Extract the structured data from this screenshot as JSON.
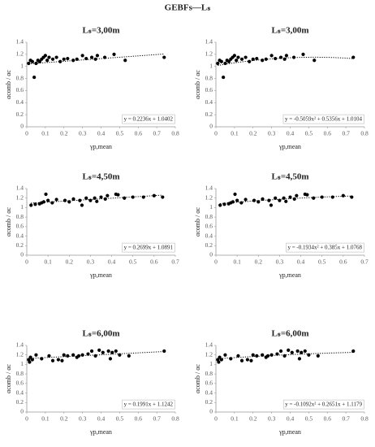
{
  "title": "GEBFs—Lₛ",
  "chart_data": [
    {
      "type": "scatter",
      "title": "Lₛ=3,00m",
      "x_label": "γp,mean",
      "y_label": "αcomb / αc",
      "color": "#000000",
      "x": [
        0.01,
        0.02,
        0.03,
        0.04,
        0.05,
        0.06,
        0.07,
        0.08,
        0.09,
        0.1,
        0.11,
        0.12,
        0.14,
        0.16,
        0.18,
        0.2,
        0.22,
        0.25,
        0.27,
        0.3,
        0.32,
        0.35,
        0.37,
        0.38,
        0.42,
        0.47,
        0.53,
        0.74
      ],
      "y": [
        1.05,
        1.1,
        1.08,
        0.82,
        1.05,
        1.1,
        1.08,
        1.12,
        1.15,
        1.18,
        1.1,
        1.15,
        1.12,
        1.15,
        1.08,
        1.12,
        1.13,
        1.1,
        1.12,
        1.18,
        1.13,
        1.15,
        1.12,
        1.18,
        1.15,
        1.2,
        1.1,
        1.15
      ],
      "xlim": [
        0,
        0.8
      ],
      "ylim": [
        0,
        1.4
      ],
      "xticks": [
        0,
        0.1,
        0.2,
        0.3,
        0.4,
        0.5,
        0.6,
        0.7,
        0.8
      ],
      "yticks": [
        0,
        0.2,
        0.4,
        0.6,
        0.8,
        1,
        1.2,
        1.4
      ],
      "trendline": {
        "coefficients": [
          0.2236,
          1.0402
        ],
        "label": "y = 0.2236x + 1.0402"
      }
    },
    {
      "type": "scatter",
      "title": "Lₛ=3,00m",
      "x_label": "γp,mean",
      "y_label": "αcomb / αc",
      "color": "#000000",
      "x": [
        0.01,
        0.02,
        0.03,
        0.04,
        0.05,
        0.06,
        0.07,
        0.08,
        0.09,
        0.1,
        0.11,
        0.12,
        0.14,
        0.16,
        0.18,
        0.2,
        0.22,
        0.25,
        0.27,
        0.3,
        0.32,
        0.35,
        0.37,
        0.38,
        0.42,
        0.47,
        0.53,
        0.74
      ],
      "y": [
        1.05,
        1.1,
        1.08,
        0.82,
        1.05,
        1.1,
        1.08,
        1.12,
        1.15,
        1.18,
        1.1,
        1.15,
        1.12,
        1.15,
        1.08,
        1.12,
        1.13,
        1.1,
        1.12,
        1.18,
        1.13,
        1.15,
        1.12,
        1.18,
        1.15,
        1.2,
        1.1,
        1.15
      ],
      "xlim": [
        0,
        0.8
      ],
      "ylim": [
        0,
        1.4
      ],
      "xticks": [
        0,
        0.1,
        0.2,
        0.3,
        0.4,
        0.5,
        0.6,
        0.7,
        0.8
      ],
      "yticks": [
        0,
        0.2,
        0.4,
        0.6,
        0.8,
        1,
        1.2,
        1.4
      ],
      "trendline": {
        "coefficients": [
          -0.5059,
          0.5356,
          1.0104
        ],
        "label": "y = -0.5059x² + 0.5356x + 1.0104"
      }
    },
    {
      "type": "scatter",
      "title": "Lₛ=4,50m",
      "x_label": "γp,mean",
      "y_label": "αcomb / αc",
      "color": "#000000",
      "x": [
        0.02,
        0.04,
        0.06,
        0.07,
        0.08,
        0.09,
        0.1,
        0.12,
        0.14,
        0.18,
        0.2,
        0.22,
        0.25,
        0.26,
        0.28,
        0.3,
        0.32,
        0.33,
        0.35,
        0.37,
        0.38,
        0.42,
        0.43,
        0.46,
        0.5,
        0.55,
        0.6,
        0.64
      ],
      "y": [
        1.05,
        1.07,
        1.08,
        1.1,
        1.12,
        1.28,
        1.15,
        1.1,
        1.17,
        1.15,
        1.12,
        1.18,
        1.15,
        1.05,
        1.2,
        1.15,
        1.2,
        1.13,
        1.22,
        1.18,
        1.25,
        1.28,
        1.27,
        1.2,
        1.22,
        1.22,
        1.25,
        1.22
      ],
      "xlim": [
        0,
        0.7
      ],
      "ylim": [
        0,
        1.4
      ],
      "xticks": [
        0,
        0.1,
        0.2,
        0.3,
        0.4,
        0.5,
        0.6,
        0.7
      ],
      "yticks": [
        0,
        0.2,
        0.4,
        0.6,
        0.8,
        1,
        1.2,
        1.4
      ],
      "trendline": {
        "coefficients": [
          0.2699,
          1.0891
        ],
        "label": "y = 0.2699x + 1.0891"
      }
    },
    {
      "type": "scatter",
      "title": "Lₛ=4,50m",
      "x_label": "γp,mean",
      "y_label": "αcomb / αc",
      "color": "#000000",
      "x": [
        0.02,
        0.04,
        0.06,
        0.07,
        0.08,
        0.09,
        0.1,
        0.12,
        0.14,
        0.18,
        0.2,
        0.22,
        0.25,
        0.26,
        0.28,
        0.3,
        0.32,
        0.33,
        0.35,
        0.37,
        0.38,
        0.42,
        0.43,
        0.46,
        0.5,
        0.55,
        0.6,
        0.64
      ],
      "y": [
        1.05,
        1.07,
        1.08,
        1.1,
        1.12,
        1.28,
        1.15,
        1.1,
        1.17,
        1.15,
        1.12,
        1.18,
        1.15,
        1.05,
        1.2,
        1.15,
        1.2,
        1.13,
        1.22,
        1.18,
        1.25,
        1.28,
        1.27,
        1.2,
        1.22,
        1.22,
        1.25,
        1.22
      ],
      "xlim": [
        0,
        0.7
      ],
      "ylim": [
        0,
        1.4
      ],
      "xticks": [
        0,
        0.1,
        0.2,
        0.3,
        0.4,
        0.5,
        0.6,
        0.7
      ],
      "yticks": [
        0,
        0.2,
        0.4,
        0.6,
        0.8,
        1,
        1.2,
        1.4
      ],
      "trendline": {
        "coefficients": [
          -0.1934,
          0.385,
          1.0768
        ],
        "label": "y = -0.1934x² + 0.385x + 1.0768"
      }
    },
    {
      "type": "scatter",
      "title": "Lₛ=6,00m",
      "x_label": "γp,mean",
      "y_label": "αcomb / αc",
      "color": "#000000",
      "x": [
        0.01,
        0.015,
        0.02,
        0.03,
        0.05,
        0.08,
        0.12,
        0.14,
        0.17,
        0.19,
        0.2,
        0.22,
        0.25,
        0.27,
        0.28,
        0.3,
        0.33,
        0.35,
        0.37,
        0.39,
        0.41,
        0.44,
        0.45,
        0.46,
        0.48,
        0.5,
        0.55,
        0.74
      ],
      "y": [
        1.1,
        1.05,
        1.15,
        1.1,
        1.2,
        1.12,
        1.18,
        1.08,
        1.1,
        1.08,
        1.2,
        1.18,
        1.2,
        1.15,
        1.18,
        1.2,
        1.22,
        1.28,
        1.18,
        1.3,
        1.25,
        1.28,
        1.12,
        1.25,
        1.28,
        1.2,
        1.18,
        1.28
      ],
      "xlim": [
        0,
        0.8
      ],
      "ylim": [
        0,
        1.4
      ],
      "xticks": [
        0,
        0.1,
        0.2,
        0.3,
        0.4,
        0.5,
        0.6,
        0.7,
        0.8
      ],
      "yticks": [
        0,
        0.2,
        0.4,
        0.6,
        0.8,
        1,
        1.2,
        1.4
      ],
      "trendline": {
        "coefficients": [
          0.1991,
          1.1242
        ],
        "label": "y = 0.1991x + 1.1242"
      }
    },
    {
      "type": "scatter",
      "title": "Lₛ=6,00m",
      "x_label": "γp,mean",
      "y_label": "αcomb / αc",
      "color": "#000000",
      "x": [
        0.01,
        0.015,
        0.02,
        0.03,
        0.05,
        0.08,
        0.12,
        0.14,
        0.17,
        0.19,
        0.2,
        0.22,
        0.25,
        0.27,
        0.28,
        0.3,
        0.33,
        0.35,
        0.37,
        0.39,
        0.41,
        0.44,
        0.45,
        0.46,
        0.48,
        0.5,
        0.55,
        0.74
      ],
      "y": [
        1.1,
        1.05,
        1.15,
        1.1,
        1.2,
        1.12,
        1.18,
        1.08,
        1.1,
        1.08,
        1.2,
        1.18,
        1.2,
        1.15,
        1.18,
        1.2,
        1.22,
        1.28,
        1.18,
        1.3,
        1.25,
        1.28,
        1.12,
        1.25,
        1.28,
        1.2,
        1.18,
        1.28
      ],
      "xlim": [
        0,
        0.8
      ],
      "ylim": [
        0,
        1.4
      ],
      "xticks": [
        0,
        0.1,
        0.2,
        0.3,
        0.4,
        0.5,
        0.6,
        0.7,
        0.8
      ],
      "yticks": [
        0,
        0.2,
        0.4,
        0.6,
        0.8,
        1,
        1.2,
        1.4
      ],
      "trendline": {
        "coefficients": [
          -0.1092,
          0.2651,
          1.1179
        ],
        "label": "y = -0.1092x² + 0.2651x + 1.1179"
      }
    }
  ]
}
